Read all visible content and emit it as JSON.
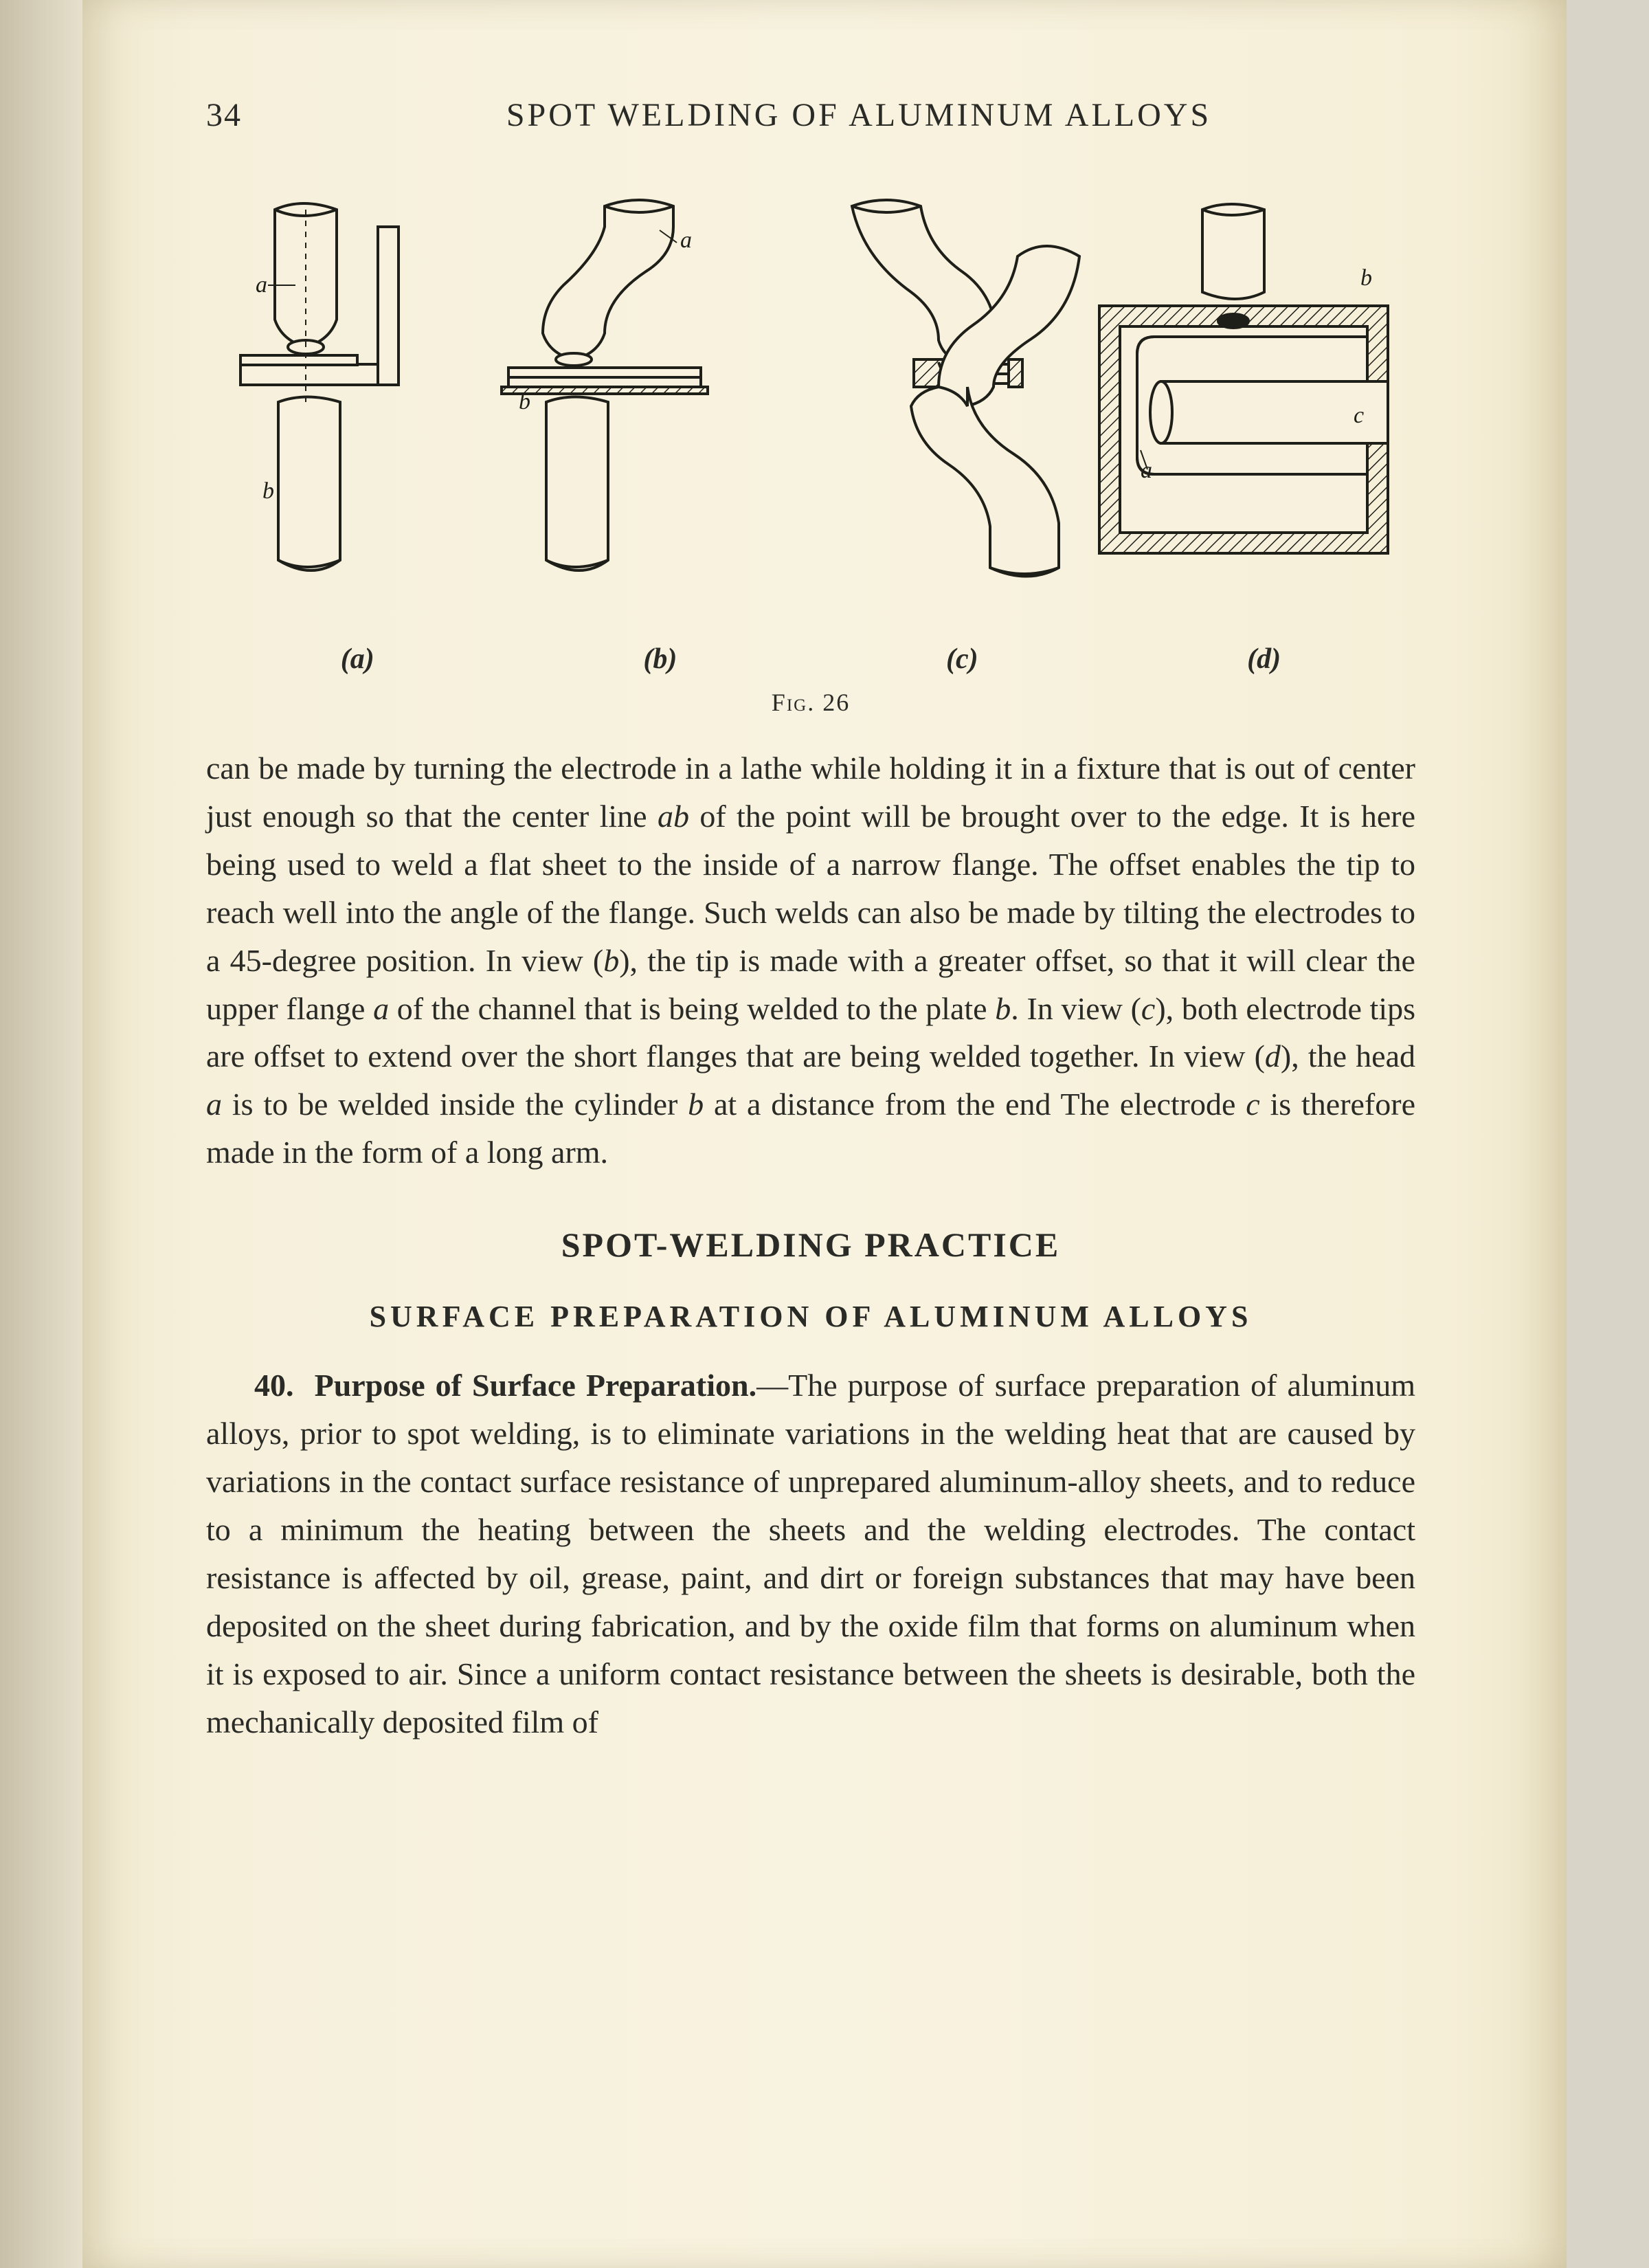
{
  "page": {
    "number": "34",
    "running_title": "SPOT WELDING OF ALUMINUM ALLOYS",
    "background_color": "#f7f1dd",
    "text_color": "#2a2a26"
  },
  "figure": {
    "caption_leader": "Fig.",
    "caption_number": "26",
    "sublabels": [
      "(a)",
      "(b)",
      "(c)",
      "(d)"
    ],
    "annotations": {
      "a_label": "a",
      "b_label": "b",
      "c_label": "c"
    },
    "stroke_color": "#1f1f1a",
    "hatch_color": "#1f1f1a",
    "fill_color": "#f7f1dd",
    "stroke_width": 4,
    "label_fontsize": 34,
    "label_style": "italic"
  },
  "paragraph1": "can be made by turning the electrode in a lathe while holding it in a fixture that is out of center just enough so that the center line ab of the point will be brought over to the edge. It is here being used to weld a flat sheet to the inside of a narrow flange. The offset enables the tip to reach well into the angle of the flange. Such welds can also be made by tilting the electrodes to a 45-degree position. In view (b), the tip is made with a greater offset, so that it will clear the upper flange a of the channel that is being welded to the plate b. In view (c), both electrode tips are offset to extend over the short flanges that are being welded together. In view (d), the head a is to be welded inside the cylinder b at a distance from the end  The electrode c is therefore made in the form of a long arm.",
  "section_title": "SPOT-WELDING PRACTICE",
  "subsection_title": "SURFACE PREPARATION OF ALUMINUM ALLOYS",
  "paragraph40": {
    "number": "40.",
    "title": "Purpose of Surface Preparation.",
    "dash": "—",
    "body": "The purpose of surface preparation of aluminum alloys, prior to spot welding, is to eliminate variations in the welding heat that are caused by variations in the contact surface resistance of unprepared aluminum-alloy sheets, and to reduce to a minimum the heating between the sheets and the welding electrodes. The contact resistance is affected by oil, grease, paint, and dirt or foreign substances that may have been deposited on the sheet during fabrication, and by the oxide film that forms on aluminum when it is exposed to air. Since a uniform contact resistance between the sheets is desirable, both the mechanically deposited film of"
  }
}
